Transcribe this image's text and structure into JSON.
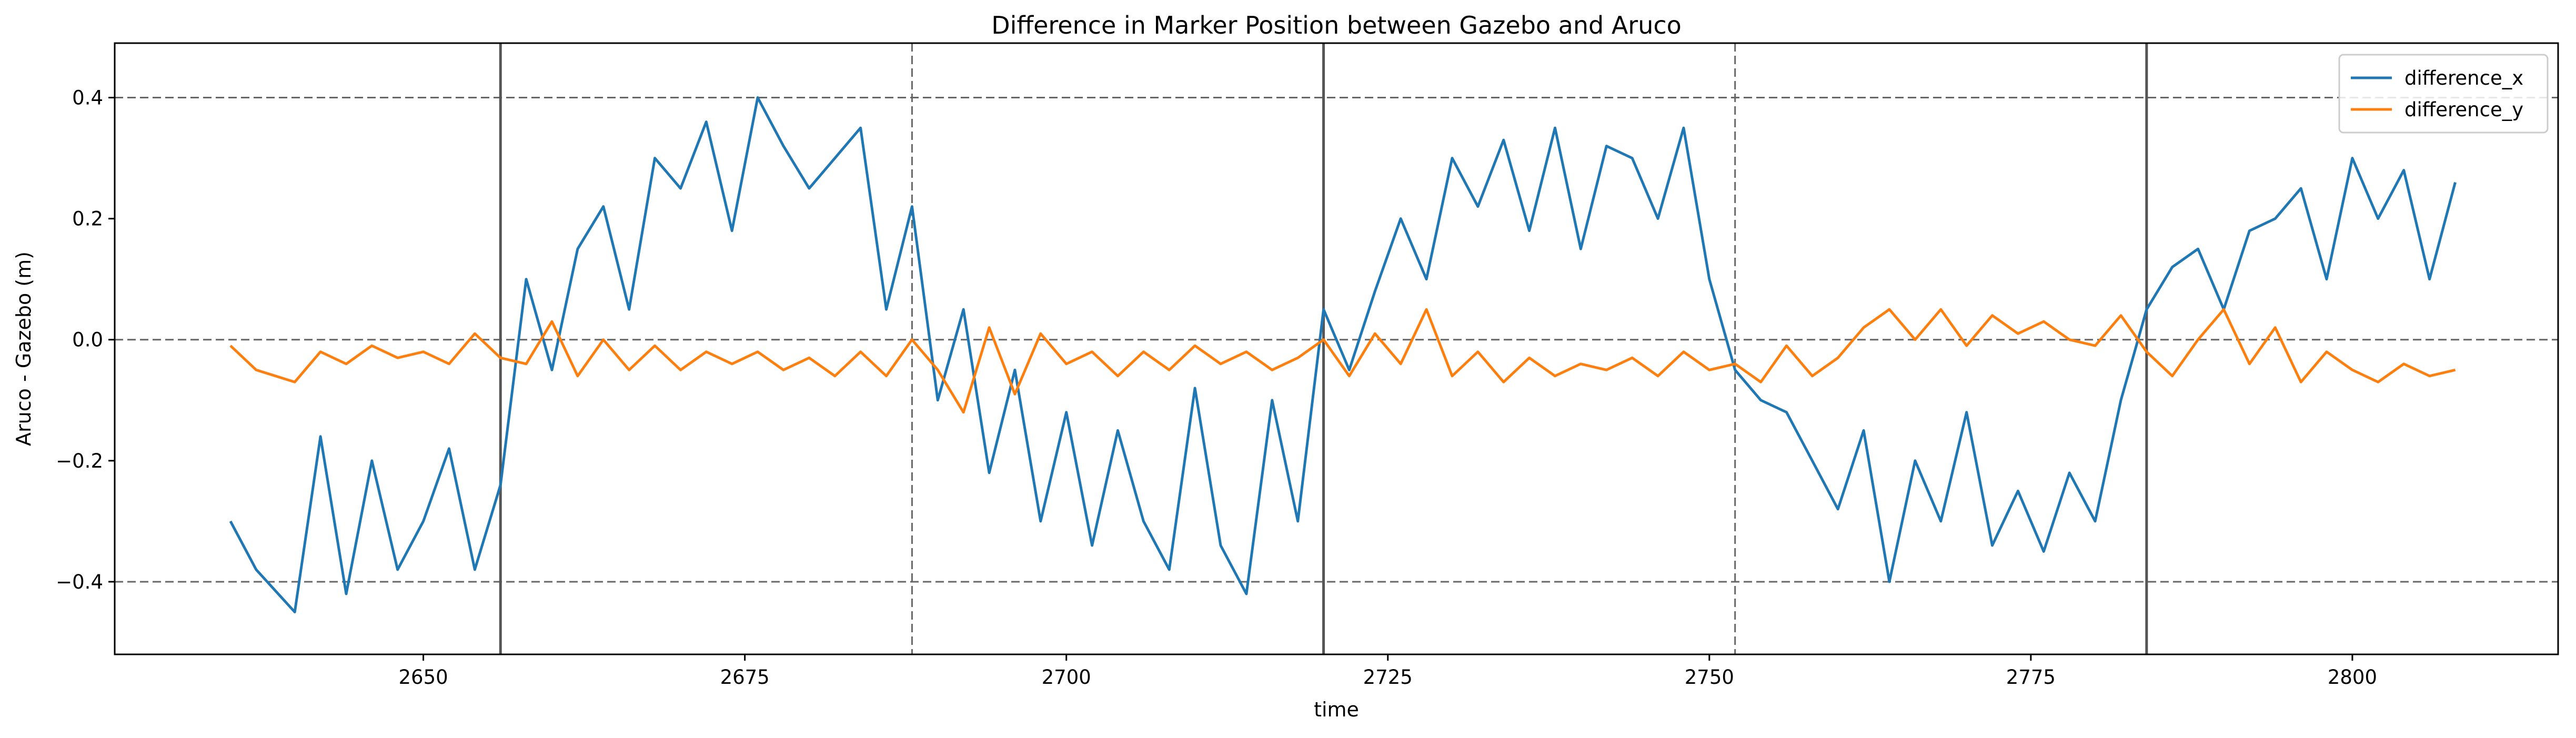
{
  "chart_data": {
    "type": "line",
    "title": "Difference in Marker Position between Gazebo and Aruco",
    "xlabel": "time",
    "ylabel": "Aruco - Gazebo (m)",
    "xlim": [
      2626,
      2816
    ],
    "ylim": [
      -0.52,
      0.49
    ],
    "xticks": [
      2650,
      2675,
      2700,
      2725,
      2750,
      2775,
      2800
    ],
    "yticks": [
      -0.4,
      -0.2,
      0.0,
      0.2,
      0.4
    ],
    "ytick_labels": [
      "−0.4",
      "−0.2",
      "0.0",
      "0.2",
      "0.4"
    ],
    "grid": false,
    "legend_position": "top-right",
    "reference_lines": {
      "horizontal_dashed": [
        -0.4,
        0.0,
        0.4
      ],
      "vertical_solid": [
        2656,
        2720,
        2784
      ],
      "vertical_dashed": [
        2688,
        2752
      ]
    },
    "series": [
      {
        "name": "difference_x",
        "color": "#1f77b4",
        "x": [
          2635,
          2637,
          2640,
          2642,
          2644,
          2646,
          2648,
          2650,
          2652,
          2654,
          2656,
          2658,
          2660,
          2662,
          2664,
          2666,
          2668,
          2670,
          2672,
          2674,
          2676,
          2678,
          2680,
          2682,
          2684,
          2686,
          2688,
          2690,
          2692,
          2694,
          2696,
          2698,
          2700,
          2702,
          2704,
          2706,
          2708,
          2710,
          2712,
          2714,
          2716,
          2718,
          2720,
          2722,
          2724,
          2726,
          2728,
          2730,
          2732,
          2734,
          2736,
          2738,
          2740,
          2742,
          2744,
          2746,
          2748,
          2750,
          2752,
          2754,
          2756,
          2758,
          2760,
          2762,
          2764,
          2766,
          2768,
          2770,
          2772,
          2774,
          2776,
          2778,
          2780,
          2782,
          2784,
          2786,
          2788,
          2790,
          2792,
          2794,
          2796,
          2798,
          2800,
          2802,
          2804,
          2806,
          2808
        ],
        "y": [
          -0.3,
          -0.38,
          -0.45,
          -0.16,
          -0.42,
          -0.2,
          -0.38,
          -0.3,
          -0.18,
          -0.38,
          -0.24,
          0.1,
          -0.05,
          0.15,
          0.22,
          0.05,
          0.3,
          0.25,
          0.36,
          0.18,
          0.4,
          0.32,
          0.25,
          0.3,
          0.35,
          0.05,
          0.22,
          -0.1,
          0.05,
          -0.22,
          -0.05,
          -0.3,
          -0.12,
          -0.34,
          -0.15,
          -0.3,
          -0.38,
          -0.08,
          -0.34,
          -0.42,
          -0.1,
          -0.3,
          0.05,
          -0.05,
          0.08,
          0.2,
          0.1,
          0.3,
          0.22,
          0.33,
          0.18,
          0.35,
          0.15,
          0.32,
          0.3,
          0.2,
          0.35,
          0.1,
          -0.05,
          -0.1,
          -0.12,
          -0.2,
          -0.28,
          -0.15,
          -0.4,
          -0.2,
          -0.3,
          -0.12,
          -0.34,
          -0.25,
          -0.35,
          -0.22,
          -0.3,
          -0.1,
          0.05,
          0.12,
          0.15,
          0.05,
          0.18,
          0.2,
          0.25,
          0.1,
          0.3,
          0.2,
          0.28,
          0.1,
          0.26
        ]
      },
      {
        "name": "difference_y",
        "color": "#ff7f0e",
        "x": [
          2635,
          2637,
          2640,
          2642,
          2644,
          2646,
          2648,
          2650,
          2652,
          2654,
          2656,
          2658,
          2660,
          2662,
          2664,
          2666,
          2668,
          2670,
          2672,
          2674,
          2676,
          2678,
          2680,
          2682,
          2684,
          2686,
          2688,
          2690,
          2692,
          2694,
          2696,
          2698,
          2700,
          2702,
          2704,
          2706,
          2708,
          2710,
          2712,
          2714,
          2716,
          2718,
          2720,
          2722,
          2724,
          2726,
          2728,
          2730,
          2732,
          2734,
          2736,
          2738,
          2740,
          2742,
          2744,
          2746,
          2748,
          2750,
          2752,
          2754,
          2756,
          2758,
          2760,
          2762,
          2764,
          2766,
          2768,
          2770,
          2772,
          2774,
          2776,
          2778,
          2780,
          2782,
          2784,
          2786,
          2788,
          2790,
          2792,
          2794,
          2796,
          2798,
          2800,
          2802,
          2804,
          2806,
          2808
        ],
        "y": [
          -0.01,
          -0.05,
          -0.07,
          -0.02,
          -0.04,
          -0.01,
          -0.03,
          -0.02,
          -0.04,
          0.01,
          -0.03,
          -0.04,
          0.03,
          -0.06,
          0.0,
          -0.05,
          -0.01,
          -0.05,
          -0.02,
          -0.04,
          -0.02,
          -0.05,
          -0.03,
          -0.06,
          -0.02,
          -0.06,
          0.0,
          -0.05,
          -0.12,
          0.02,
          -0.09,
          0.01,
          -0.04,
          -0.02,
          -0.06,
          -0.02,
          -0.05,
          -0.01,
          -0.04,
          -0.02,
          -0.05,
          -0.03,
          0.0,
          -0.06,
          0.01,
          -0.04,
          0.05,
          -0.06,
          -0.02,
          -0.07,
          -0.03,
          -0.06,
          -0.04,
          -0.05,
          -0.03,
          -0.06,
          -0.02,
          -0.05,
          -0.04,
          -0.07,
          -0.01,
          -0.06,
          -0.03,
          0.02,
          0.05,
          0.0,
          0.05,
          -0.01,
          0.04,
          0.01,
          0.03,
          0.0,
          -0.01,
          0.04,
          -0.02,
          -0.06,
          0.0,
          0.05,
          -0.04,
          0.02,
          -0.07,
          -0.02,
          -0.05,
          -0.07,
          -0.04,
          -0.06,
          -0.05
        ]
      }
    ]
  }
}
